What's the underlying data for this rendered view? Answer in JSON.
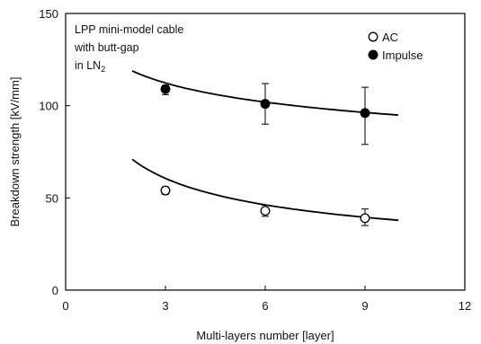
{
  "chart_data": {
    "type": "scatter",
    "xlabel": "Multi-layers number [layer]",
    "ylabel": "Breakdown strength [kV/mm]",
    "xlim": [
      0,
      12
    ],
    "ylim": [
      0,
      150
    ],
    "xticks": [
      0,
      3,
      6,
      9,
      12
    ],
    "yticks": [
      0,
      50,
      100,
      150
    ],
    "grid": false,
    "legend_position": "top-right",
    "annotation": {
      "line1": "LPP mini-model cable",
      "line2": "with butt-gap",
      "line3_main": "in LN",
      "line3_sub": "2"
    },
    "series": [
      {
        "name": "AC",
        "marker": "open-circle",
        "color": "#000000",
        "x": [
          3,
          6,
          9
        ],
        "y": [
          54,
          43,
          39
        ],
        "err_low": [
          52,
          40,
          35
        ],
        "err_high": [
          56,
          46,
          44
        ],
        "fit": {
          "x": [
            2,
            10
          ],
          "a": 93,
          "b": -0.39
        }
      },
      {
        "name": "Impulse",
        "marker": "filled-circle",
        "color": "#000000",
        "x": [
          3,
          6,
          9
        ],
        "y": [
          109,
          101,
          96
        ],
        "err_low": [
          106,
          90,
          79
        ],
        "err_high": [
          111,
          112,
          110
        ],
        "fit": {
          "x": [
            2,
            10
          ],
          "a": 131,
          "b": -0.14
        }
      }
    ]
  }
}
